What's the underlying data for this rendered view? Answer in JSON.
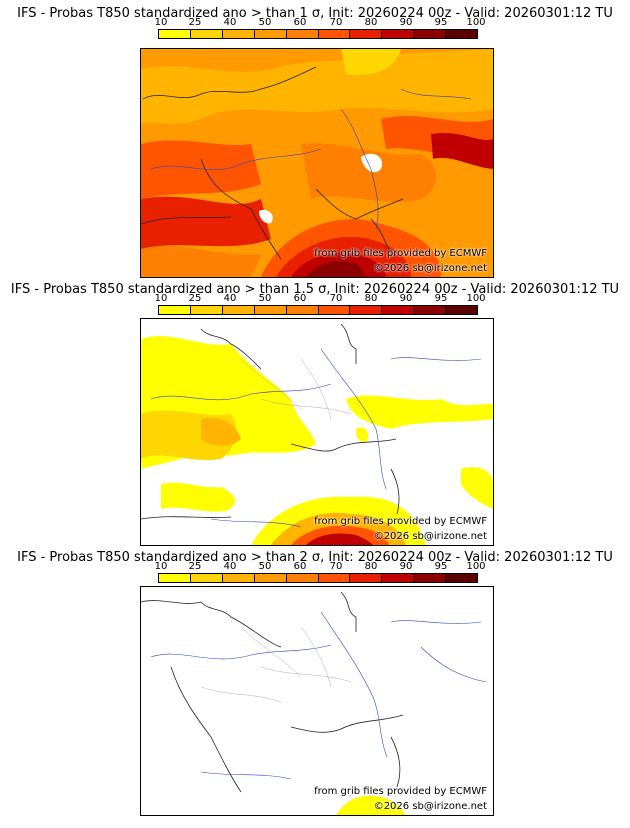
{
  "colorbar": {
    "ticks": [
      "10",
      "25",
      "40",
      "50",
      "60",
      "70",
      "80",
      "90",
      "95",
      "100"
    ],
    "colors": [
      "#ffff00",
      "#ffd700",
      "#ffb400",
      "#ff9a00",
      "#ff7f00",
      "#ff5500",
      "#e82000",
      "#c00000",
      "#8b0000",
      "#5a0000"
    ]
  },
  "credit_source": "from grib files provided by ECMWF",
  "credit_copyright": "©2026 sb@irizone.net",
  "panels": [
    {
      "title": "IFS - Probas T850  standardized ano > than 1 σ, Init: 20260224 00z - Valid: 20260301:12 TU",
      "threshold_sigma": 1
    },
    {
      "title": "IFS - Probas T850  standardized ano > than 1.5 σ, Init: 20260224 00z - Valid: 20260301:12 TU",
      "threshold_sigma": 1.5
    },
    {
      "title": "IFS - Probas T850  standardized ano > than 2 σ, Init: 20260224 00z - Valid: 20260301:12 TU",
      "threshold_sigma": 2
    }
  ]
}
